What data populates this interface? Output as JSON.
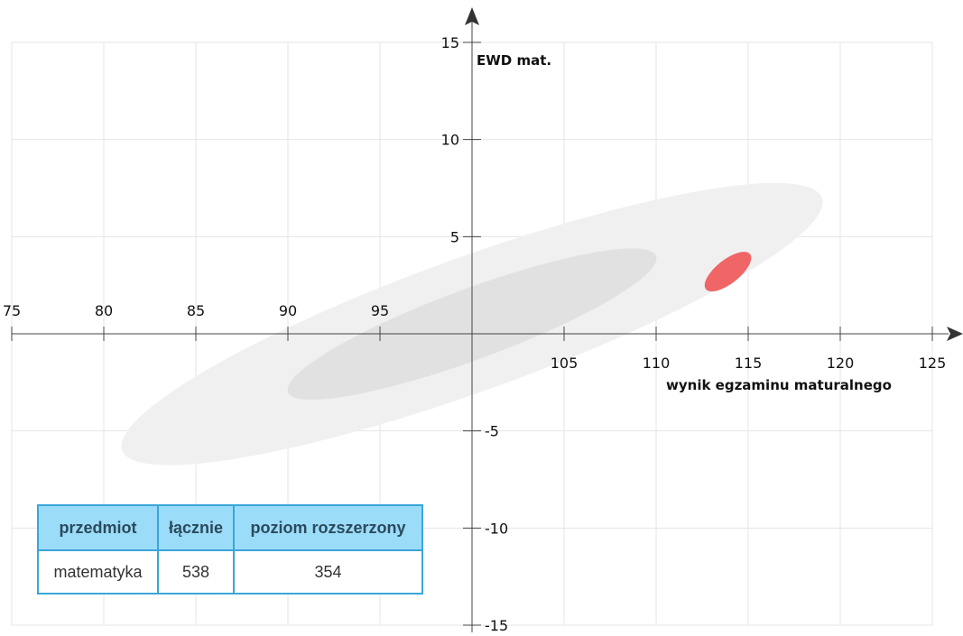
{
  "chart_data": {
    "type": "scatter",
    "title": "",
    "xlabel": "wynik egzaminu maturalnego",
    "ylabel": "EWD mat.",
    "xlim": [
      75,
      125
    ],
    "ylim": [
      -15,
      15
    ],
    "x_ticks": [
      75,
      80,
      85,
      90,
      95,
      105,
      110,
      115,
      120,
      125
    ],
    "y_ticks": [
      15,
      10,
      5,
      -5,
      -10,
      -15
    ],
    "grid": true,
    "ellipses": [
      {
        "name": "",
        "cx": 100,
        "cy": 0.5,
        "x_from": 81,
        "x_to": 119,
        "y_at_from": -6,
        "y_at_to": 7,
        "color": "#f0f0f0"
      },
      {
        "name": "",
        "cx": 100,
        "cy": 0.5,
        "x_from": 90,
        "x_to": 110,
        "y_at_from": -3,
        "y_at_to": 4,
        "color": "#e1e1e1"
      },
      {
        "name": "",
        "cx": 114,
        "cy": 3.2,
        "x_from": 112.7,
        "x_to": 115.1,
        "y_at_from": 2.3,
        "y_at_to": 4.1,
        "color": "#f06565"
      }
    ]
  },
  "table": {
    "headers": [
      "przedmiot",
      "łącznie",
      "poziom rozszerzony"
    ],
    "row": [
      "matematyka",
      "538",
      "354"
    ]
  },
  "colors": {
    "axis": "#444444",
    "grid": "#e4e4e4",
    "table_header_bg": "#9bdcf9",
    "table_border": "#3aa6d8"
  }
}
